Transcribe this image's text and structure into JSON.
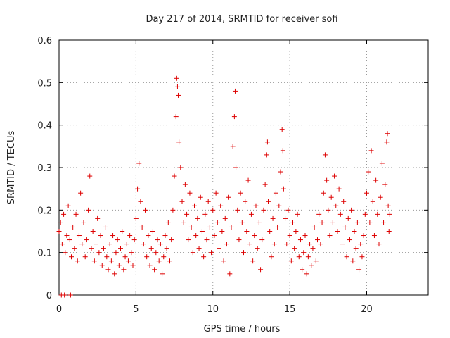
{
  "chart_data": {
    "type": "scatter",
    "title": "Day 217 of 2014, SRMTID for receiver sofi",
    "xlabel": "GPS time / hours",
    "ylabel": "SRMTID / TECUs",
    "xlim": [
      0,
      24
    ],
    "ylim": [
      0,
      0.6
    ],
    "x_ticks": [
      "0",
      "5",
      "10",
      "15",
      "20"
    ],
    "y_ticks": [
      "0",
      "0.1",
      "0.2",
      "0.3",
      "0.4",
      "0.5",
      "0.6"
    ],
    "grid": true,
    "marker": "+",
    "series": [
      {
        "name": "sofi",
        "color": "#dd0000",
        "points_hours_tecu": [
          [
            0.0,
            0.15
          ],
          [
            0.1,
            0.17
          ],
          [
            0.2,
            0.12
          ],
          [
            0.3,
            0.19
          ],
          [
            0.4,
            0.1
          ],
          [
            0.5,
            0.14
          ],
          [
            0.6,
            0.21
          ],
          [
            0.7,
            0.13
          ],
          [
            0.8,
            0.09
          ],
          [
            0.9,
            0.16
          ],
          [
            1.0,
            0.11
          ],
          [
            1.1,
            0.19
          ],
          [
            1.2,
            0.08
          ],
          [
            1.3,
            0.14
          ],
          [
            1.4,
            0.24
          ],
          [
            1.5,
            0.12
          ],
          [
            1.6,
            0.17
          ],
          [
            1.7,
            0.09
          ],
          [
            1.8,
            0.13
          ],
          [
            1.9,
            0.2
          ],
          [
            2.0,
            0.28
          ],
          [
            2.1,
            0.11
          ],
          [
            2.2,
            0.15
          ],
          [
            2.3,
            0.08
          ],
          [
            2.4,
            0.12
          ],
          [
            2.5,
            0.18
          ],
          [
            2.6,
            0.1
          ],
          [
            2.7,
            0.14
          ],
          [
            2.8,
            0.07
          ],
          [
            2.9,
            0.11
          ],
          [
            3.0,
            0.16
          ],
          [
            3.1,
            0.09
          ],
          [
            3.2,
            0.06
          ],
          [
            3.3,
            0.12
          ],
          [
            3.4,
            0.08
          ],
          [
            3.5,
            0.14
          ],
          [
            3.6,
            0.05
          ],
          [
            3.7,
            0.1
          ],
          [
            3.8,
            0.13
          ],
          [
            3.9,
            0.07
          ],
          [
            4.0,
            0.11
          ],
          [
            4.1,
            0.15
          ],
          [
            4.2,
            0.06
          ],
          [
            4.3,
            0.09
          ],
          [
            4.4,
            0.12
          ],
          [
            4.5,
            0.08
          ],
          [
            4.6,
            0.14
          ],
          [
            4.7,
            0.1
          ],
          [
            4.8,
            0.07
          ],
          [
            4.9,
            0.13
          ],
          [
            5.0,
            0.18
          ],
          [
            5.1,
            0.25
          ],
          [
            5.2,
            0.31
          ],
          [
            5.3,
            0.22
          ],
          [
            5.4,
            0.16
          ],
          [
            5.5,
            0.12
          ],
          [
            5.6,
            0.2
          ],
          [
            5.7,
            0.09
          ],
          [
            5.8,
            0.14
          ],
          [
            5.9,
            0.07
          ],
          [
            6.0,
            0.11
          ],
          [
            6.1,
            0.15
          ],
          [
            6.2,
            0.06
          ],
          [
            6.3,
            0.1
          ],
          [
            6.4,
            0.13
          ],
          [
            6.5,
            0.08
          ],
          [
            6.6,
            0.12
          ],
          [
            6.7,
            0.05
          ],
          [
            6.8,
            0.09
          ],
          [
            6.9,
            0.14
          ],
          [
            7.0,
            0.11
          ],
          [
            7.1,
            0.17
          ],
          [
            7.2,
            0.08
          ],
          [
            7.3,
            0.13
          ],
          [
            7.4,
            0.2
          ],
          [
            7.5,
            0.28
          ],
          [
            7.6,
            0.42
          ],
          [
            7.65,
            0.51
          ],
          [
            7.7,
            0.49
          ],
          [
            7.75,
            0.47
          ],
          [
            7.8,
            0.36
          ],
          [
            7.9,
            0.3
          ],
          [
            8.0,
            0.22
          ],
          [
            8.1,
            0.17
          ],
          [
            8.2,
            0.26
          ],
          [
            8.3,
            0.19
          ],
          [
            8.4,
            0.13
          ],
          [
            8.5,
            0.24
          ],
          [
            8.6,
            0.16
          ],
          [
            8.7,
            0.1
          ],
          [
            8.8,
            0.21
          ],
          [
            8.9,
            0.14
          ],
          [
            9.0,
            0.18
          ],
          [
            9.1,
            0.11
          ],
          [
            9.2,
            0.23
          ],
          [
            9.3,
            0.15
          ],
          [
            9.4,
            0.09
          ],
          [
            9.5,
            0.19
          ],
          [
            9.6,
            0.13
          ],
          [
            9.7,
            0.22
          ],
          [
            9.8,
            0.16
          ],
          [
            9.9,
            0.1
          ],
          [
            10.0,
            0.2
          ],
          [
            10.1,
            0.14
          ],
          [
            10.2,
            0.24
          ],
          [
            10.3,
            0.17
          ],
          [
            10.4,
            0.11
          ],
          [
            10.5,
            0.21
          ],
          [
            10.6,
            0.15
          ],
          [
            10.7,
            0.08
          ],
          [
            10.8,
            0.18
          ],
          [
            10.9,
            0.12
          ],
          [
            11.0,
            0.23
          ],
          [
            11.1,
            0.05
          ],
          [
            11.2,
            0.16
          ],
          [
            11.3,
            0.35
          ],
          [
            11.4,
            0.42
          ],
          [
            11.45,
            0.48
          ],
          [
            11.5,
            0.3
          ],
          [
            11.6,
            0.2
          ],
          [
            11.7,
            0.13
          ],
          [
            11.8,
            0.24
          ],
          [
            11.9,
            0.17
          ],
          [
            12.0,
            0.1
          ],
          [
            12.1,
            0.22
          ],
          [
            12.2,
            0.15
          ],
          [
            12.3,
            0.27
          ],
          [
            12.4,
            0.12
          ],
          [
            12.5,
            0.19
          ],
          [
            12.6,
            0.08
          ],
          [
            12.7,
            0.14
          ],
          [
            12.8,
            0.21
          ],
          [
            12.9,
            0.11
          ],
          [
            13.0,
            0.17
          ],
          [
            13.1,
            0.06
          ],
          [
            13.2,
            0.13
          ],
          [
            13.3,
            0.2
          ],
          [
            13.4,
            0.26
          ],
          [
            13.5,
            0.33
          ],
          [
            13.55,
            0.36
          ],
          [
            13.6,
            0.22
          ],
          [
            13.7,
            0.15
          ],
          [
            13.8,
            0.09
          ],
          [
            13.9,
            0.18
          ],
          [
            14.0,
            0.12
          ],
          [
            14.1,
            0.24
          ],
          [
            14.2,
            0.16
          ],
          [
            14.3,
            0.21
          ],
          [
            14.4,
            0.29
          ],
          [
            14.5,
            0.39
          ],
          [
            14.55,
            0.34
          ],
          [
            14.6,
            0.25
          ],
          [
            14.7,
            0.18
          ],
          [
            14.8,
            0.12
          ],
          [
            14.9,
            0.2
          ],
          [
            15.0,
            0.14
          ],
          [
            15.1,
            0.08
          ],
          [
            15.2,
            0.17
          ],
          [
            15.3,
            0.11
          ],
          [
            15.4,
            0.15
          ],
          [
            15.5,
            0.19
          ],
          [
            15.6,
            0.09
          ],
          [
            15.7,
            0.13
          ],
          [
            15.8,
            0.06
          ],
          [
            15.9,
            0.1
          ],
          [
            16.0,
            0.14
          ],
          [
            16.1,
            0.05
          ],
          [
            16.2,
            0.09
          ],
          [
            16.3,
            0.12
          ],
          [
            16.4,
            0.07
          ],
          [
            16.5,
            0.11
          ],
          [
            16.6,
            0.16
          ],
          [
            16.7,
            0.08
          ],
          [
            16.8,
            0.13
          ],
          [
            16.9,
            0.19
          ],
          [
            17.0,
            0.12
          ],
          [
            17.1,
            0.17
          ],
          [
            17.2,
            0.24
          ],
          [
            17.3,
            0.33
          ],
          [
            17.4,
            0.27
          ],
          [
            17.5,
            0.2
          ],
          [
            17.6,
            0.14
          ],
          [
            17.7,
            0.23
          ],
          [
            17.8,
            0.17
          ],
          [
            17.9,
            0.28
          ],
          [
            18.0,
            0.21
          ],
          [
            18.1,
            0.15
          ],
          [
            18.2,
            0.25
          ],
          [
            18.3,
            0.19
          ],
          [
            18.4,
            0.12
          ],
          [
            18.5,
            0.22
          ],
          [
            18.6,
            0.16
          ],
          [
            18.7,
            0.09
          ],
          [
            18.8,
            0.18
          ],
          [
            18.9,
            0.13
          ],
          [
            19.0,
            0.2
          ],
          [
            19.1,
            0.08
          ],
          [
            19.2,
            0.15
          ],
          [
            19.3,
            0.11
          ],
          [
            19.4,
            0.17
          ],
          [
            19.5,
            0.06
          ],
          [
            19.6,
            0.12
          ],
          [
            19.7,
            0.09
          ],
          [
            19.8,
            0.14
          ],
          [
            19.9,
            0.19
          ],
          [
            20.0,
            0.24
          ],
          [
            20.1,
            0.29
          ],
          [
            20.2,
            0.17
          ],
          [
            20.3,
            0.34
          ],
          [
            20.4,
            0.22
          ],
          [
            20.5,
            0.14
          ],
          [
            20.6,
            0.27
          ],
          [
            20.7,
            0.19
          ],
          [
            20.8,
            0.12
          ],
          [
            20.9,
            0.23
          ],
          [
            21.0,
            0.31
          ],
          [
            21.1,
            0.17
          ],
          [
            21.2,
            0.26
          ],
          [
            21.3,
            0.36
          ],
          [
            21.35,
            0.38
          ],
          [
            21.4,
            0.21
          ],
          [
            21.45,
            0.15
          ],
          [
            21.5,
            0.19
          ],
          [
            0.15,
            0.0
          ],
          [
            0.35,
            0.0
          ],
          [
            0.75,
            0.0
          ]
        ]
      }
    ]
  }
}
